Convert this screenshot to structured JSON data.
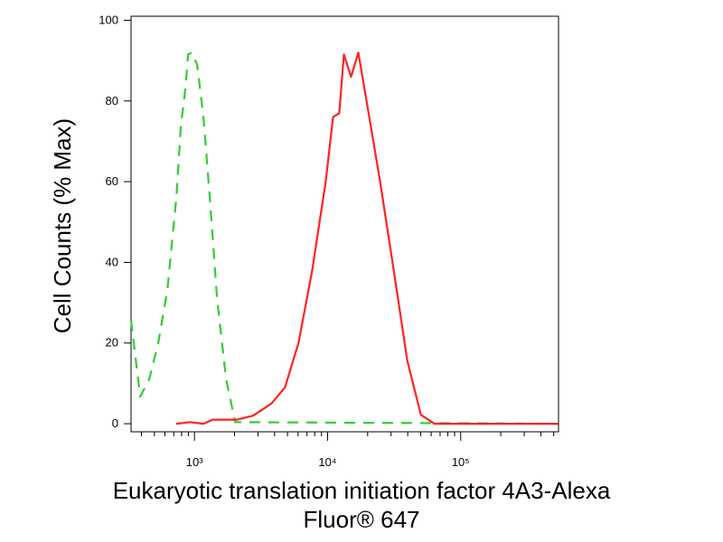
{
  "chart_data": {
    "type": "line",
    "xlabel": [
      "Eukaryotic translation initiation factor 4A3-Alexa",
      "Fluor® 647"
    ],
    "ylabel": "Cell Counts (% Max)",
    "xscale": "log",
    "xlim": [
      334,
      543000
    ],
    "ylim": [
      -2,
      101
    ],
    "xticks": [
      {
        "value": 1000,
        "label": "10³"
      },
      {
        "value": 10000,
        "label": "10⁴"
      },
      {
        "value": 100000,
        "label": "10⁵"
      }
    ],
    "yticks": [
      0,
      20,
      40,
      60,
      80,
      100
    ],
    "grid": false,
    "series": [
      {
        "color": "#33cc33",
        "style": "dashed",
        "x": [
          334,
          391,
          457,
          535,
          625,
          731,
          791,
          855,
          896,
          954,
          1048,
          1169,
          1306,
          1479,
          1730,
          2023,
          540000
        ],
        "values": [
          25.7,
          6.7,
          11,
          20,
          33,
          56,
          74,
          83,
          91.5,
          92,
          89,
          76,
          56,
          31,
          11,
          0.4,
          0
        ]
      },
      {
        "color": "#ff2222",
        "style": "solid",
        "x": [
          731,
          925,
          1169,
          1368,
          2089,
          2767,
          3784,
          4786,
          6053,
          7656,
          9683,
          10990,
          12250,
          13250,
          15020,
          17030,
          19630,
          24830,
          31410,
          39730,
          50250,
          63530,
          86900,
          540000
        ],
        "values": [
          0,
          0.4,
          0,
          1,
          1,
          2,
          5,
          9,
          20,
          38,
          60,
          76,
          77,
          91.5,
          86,
          92,
          80,
          60,
          38,
          15.6,
          2.2,
          0,
          0,
          0
        ]
      }
    ]
  }
}
